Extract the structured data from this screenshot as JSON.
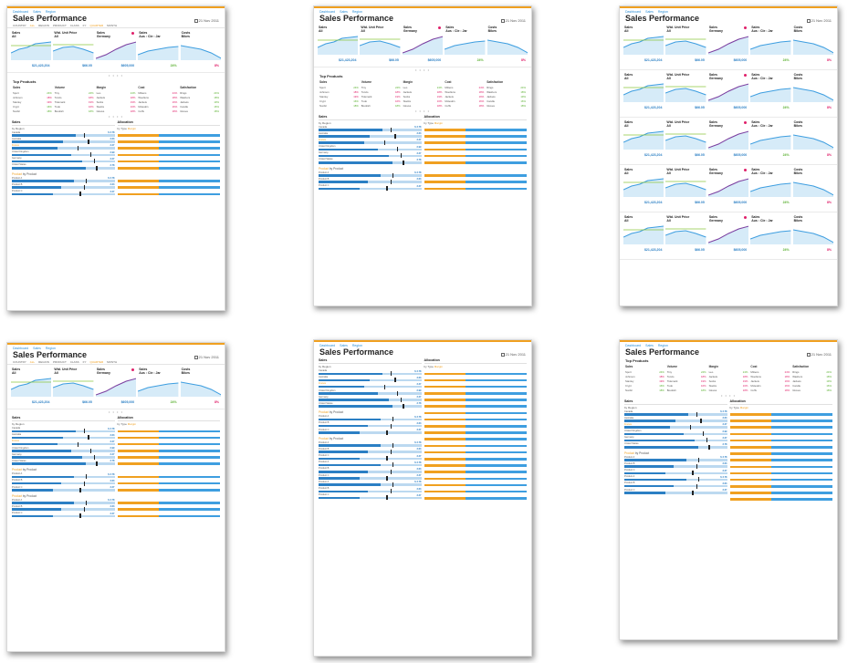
{
  "app": {
    "title": "Sales Performance",
    "date": "21 Nov 2011",
    "nav": [
      "Dashboard",
      "Sales",
      "Region"
    ]
  },
  "filters": [
    "COUNTRY",
    "ALL",
    "REGION",
    "PRODUCT",
    "CLASS",
    "DATE",
    "FY",
    "QUARTER",
    "MONTH"
  ],
  "kpis": [
    {
      "title": "Sales",
      "sub": "All",
      "value": "$21,423,204"
    },
    {
      "title": "Wtd. Unit Price",
      "sub": "All",
      "value": "$66.05"
    },
    {
      "title": "Sales",
      "sub": "Germany",
      "value": "$605,000"
    },
    {
      "title": "Sales",
      "sub": "Aus : Cle : Jar",
      "value": "24%"
    },
    {
      "title": "Costs",
      "sub": "Bikes",
      "value": "8%"
    }
  ],
  "top_products": {
    "title": "Top Products",
    "columns": [
      {
        "header": "Sales",
        "rows": [
          "Sport",
          "Johnson",
          "Stanley",
          "Crypt",
          "Nordic"
        ]
      },
      {
        "header": "Volume",
        "rows": [
          "Tiny",
          "Tondo",
          "Tidemark",
          "Tudo",
          "Bookish"
        ]
      },
      {
        "header": "Margin",
        "rows": [
          "Leo",
          "Jackets",
          "Socks",
          "Stacks",
          "Gloves"
        ]
      },
      {
        "header": "Cost",
        "rows": [
          "Mittens",
          "Woollens",
          "Jackets",
          "Moleskin",
          "Cuffs"
        ]
      },
      {
        "header": "Satisfaction",
        "rows": [
          "Rings",
          "Washers",
          "Jackets",
          "Candle",
          "Gloves"
        ]
      }
    ],
    "deltas": [
      "24%",
      "18%",
      "19%",
      "16%",
      "18%"
    ]
  },
  "sales": {
    "title": "Sales",
    "sub": "by Region",
    "rows": [
      {
        "label": "Canada",
        "value": "$ 3.78"
      },
      {
        "label": "Australia",
        "value": "3.63"
      },
      {
        "label": "France",
        "value": "3.27"
      },
      {
        "label": "United Kingdom",
        "value": "2.99"
      },
      {
        "label": "Germany",
        "value": "3.27"
      },
      {
        "label": "United States",
        "value": "3.78"
      }
    ],
    "product_title": "Product",
    "product_sub": "by Product",
    "product_rows": [
      {
        "label": "Product A",
        "value": "$ 3.78"
      },
      {
        "label": "Product B",
        "value": "3.63"
      },
      {
        "label": "Product C",
        "value": "3.27"
      }
    ]
  },
  "allocation": {
    "title": "Allocation",
    "sub": "by Type",
    "sub_accent": "Margin"
  },
  "colors": {
    "accent": "#f0a020",
    "blue": "#2b7fc4",
    "pink": "#e0206a",
    "green": "#5ab030"
  }
}
